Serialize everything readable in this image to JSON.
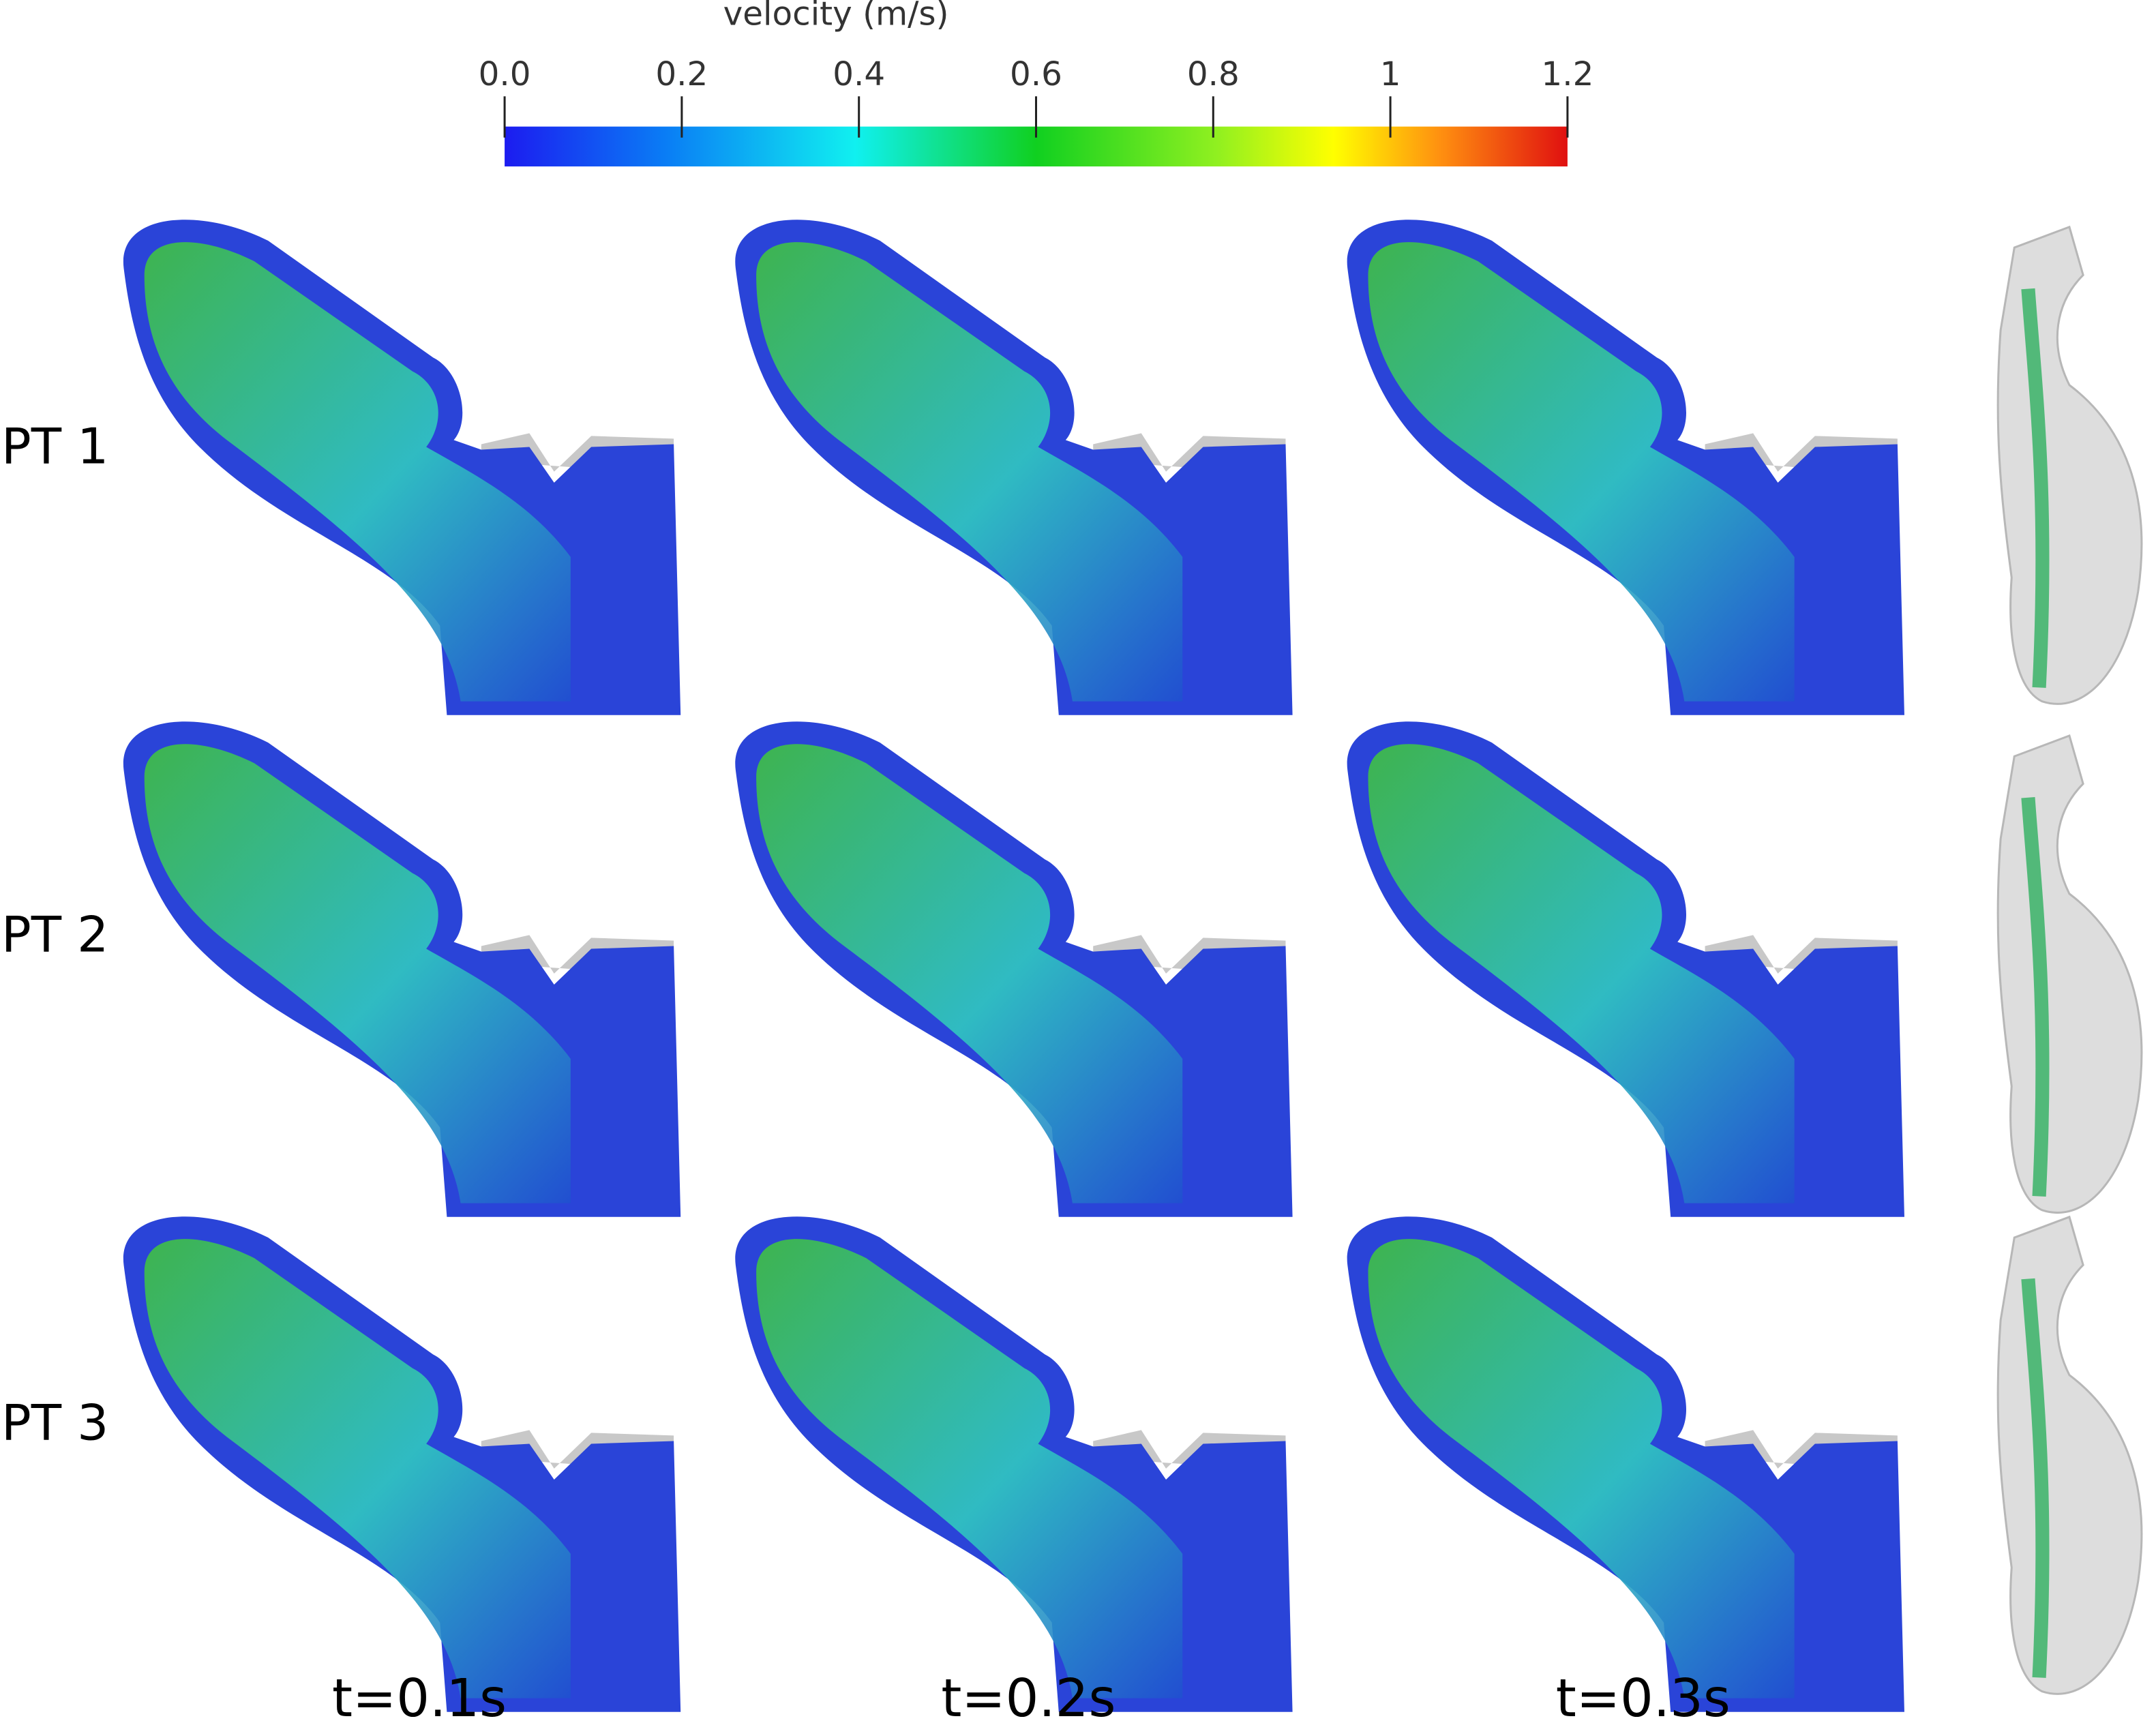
{
  "colorbar": {
    "title": "velocity (m/s)",
    "lim": [
      0,
      1.2
    ],
    "ticks": [
      {
        "value": 0,
        "label": "0.0"
      },
      0.2,
      0.4,
      0.6,
      0.8,
      1,
      1.2
    ]
  },
  "rows": [
    "PT 1",
    "PT 2",
    "PT 3"
  ],
  "columns": [
    "t=0.1s",
    "t=0.2s",
    "t=0.3s"
  ]
}
